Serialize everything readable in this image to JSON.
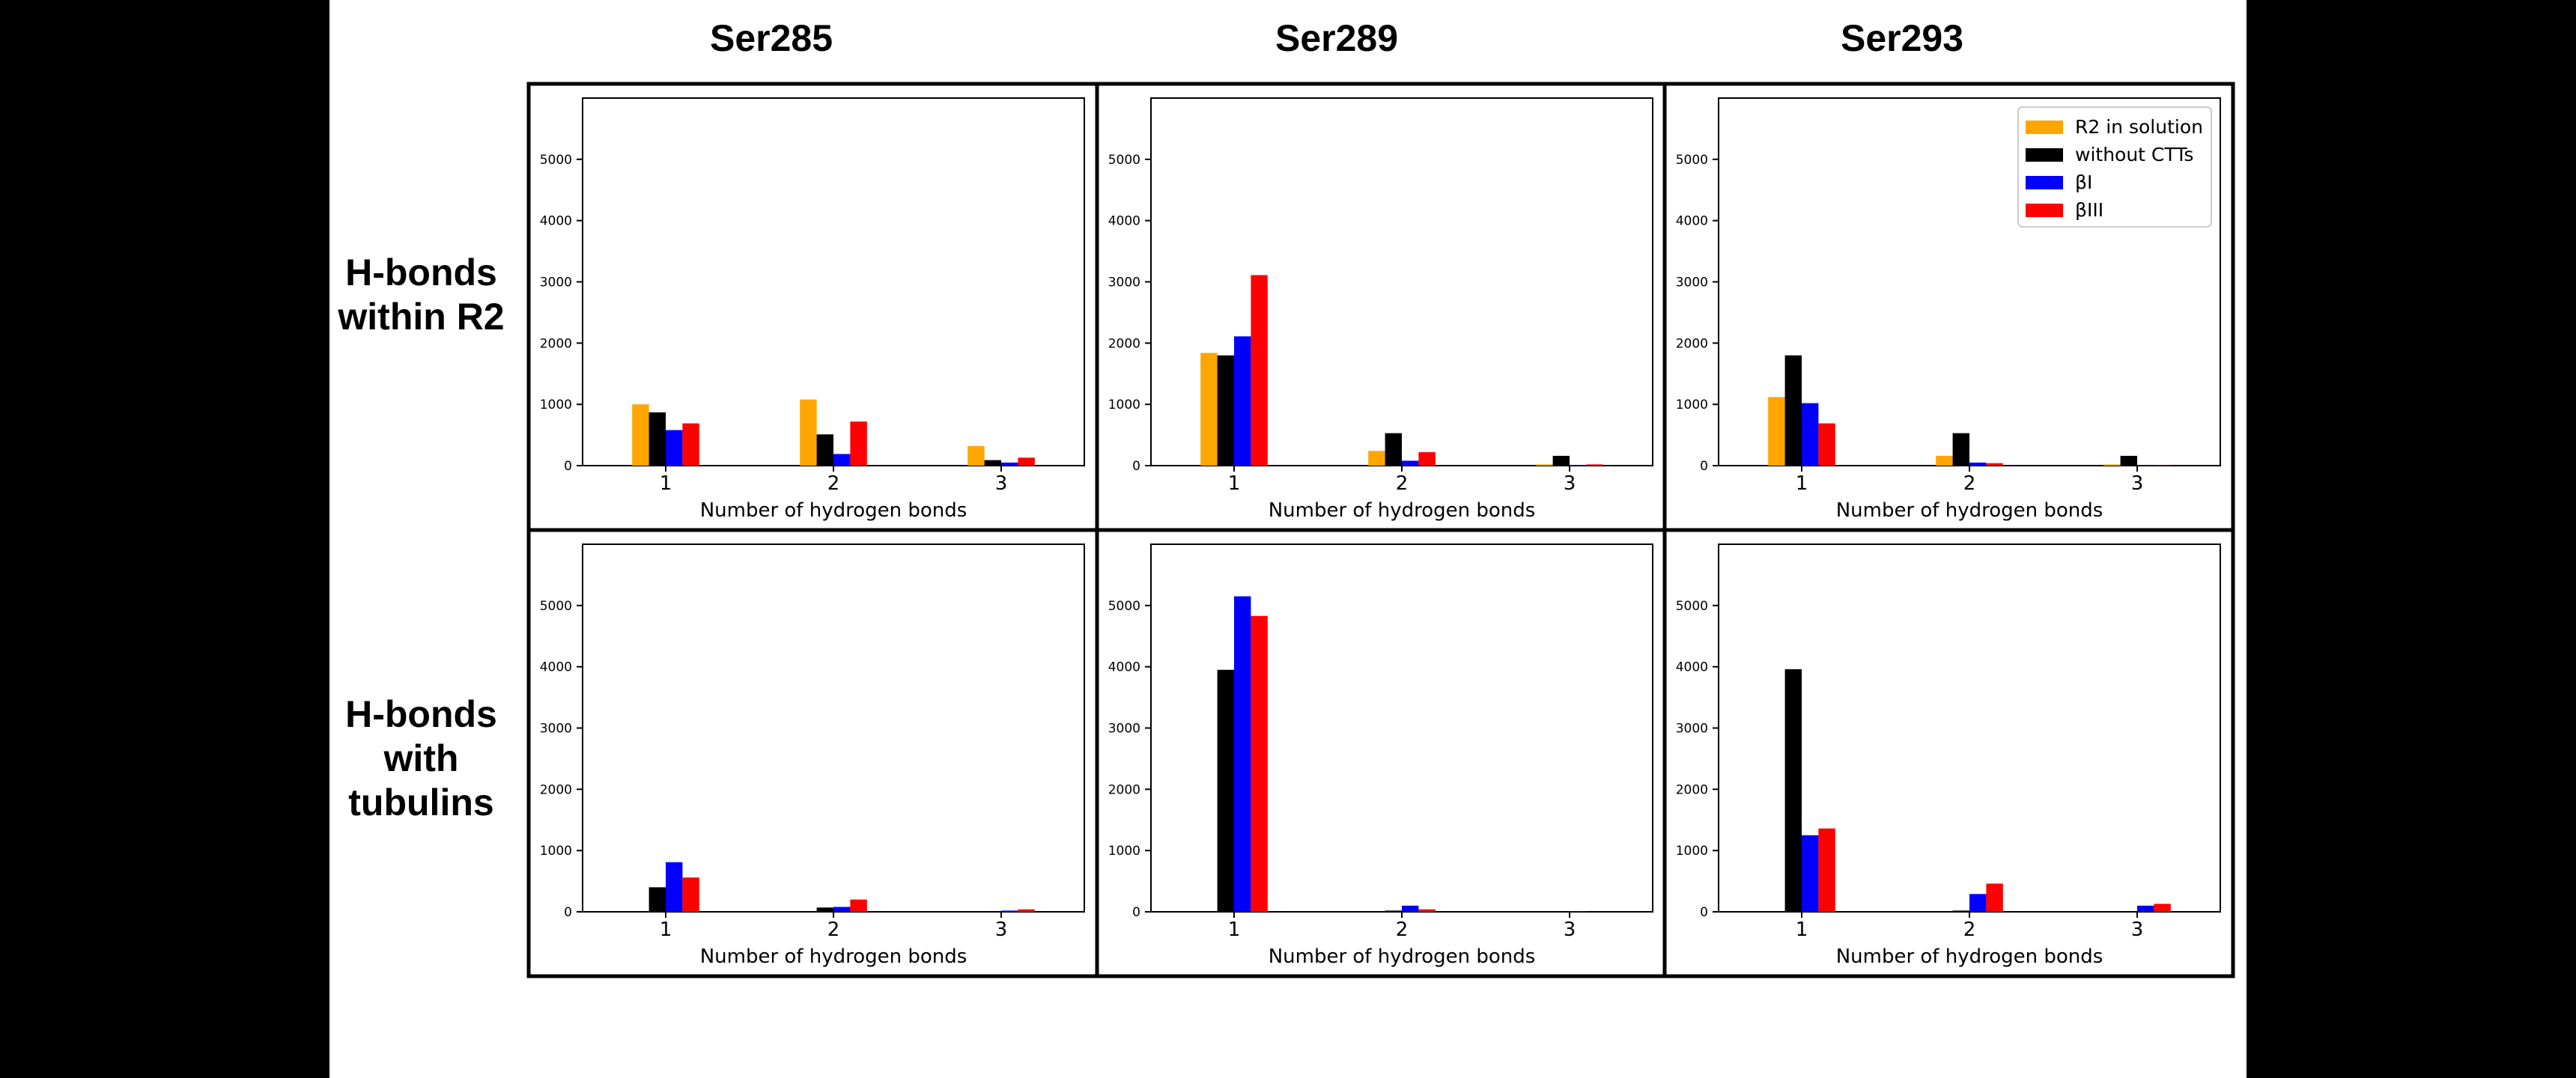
{
  "figure": {
    "columns": [
      "Ser285",
      "Ser289",
      "Ser293"
    ],
    "rows": [
      {
        "lines": [
          "H-bonds",
          "within R2"
        ]
      },
      {
        "lines": [
          "H-bonds",
          "with",
          "tubulins"
        ]
      }
    ]
  },
  "colors": {
    "R2 in solution": "#ffa500",
    "without CTTs": "#000000",
    "βI": "#0000ff",
    "βIII": "#ff0000"
  },
  "chart_data": [
    {
      "type": "bar",
      "row": 0,
      "col": 0,
      "categories": [
        "1",
        "2",
        "3"
      ],
      "xlabel": "Number of hydrogen bonds",
      "ylabel": "",
      "title": "",
      "ylim": [
        0,
        6000
      ],
      "yticks": [
        0,
        1000,
        2000,
        3000,
        4000,
        5000
      ],
      "legend": false,
      "series": [
        {
          "name": "R2 in solution",
          "values": [
            1000,
            1080,
            320
          ]
        },
        {
          "name": "without CTTs",
          "values": [
            870,
            510,
            90
          ]
        },
        {
          "name": "βI",
          "values": [
            580,
            190,
            50
          ]
        },
        {
          "name": "βIII",
          "values": [
            690,
            720,
            130
          ]
        }
      ]
    },
    {
      "type": "bar",
      "row": 0,
      "col": 1,
      "categories": [
        "1",
        "2",
        "3"
      ],
      "xlabel": "Number of hydrogen bonds",
      "ylabel": "",
      "title": "",
      "ylim": [
        0,
        6000
      ],
      "yticks": [
        0,
        1000,
        2000,
        3000,
        4000,
        5000
      ],
      "legend": false,
      "series": [
        {
          "name": "R2 in solution",
          "values": [
            1840,
            240,
            20
          ]
        },
        {
          "name": "without CTTs",
          "values": [
            1800,
            530,
            160
          ]
        },
        {
          "name": "βI",
          "values": [
            2110,
            80,
            10
          ]
        },
        {
          "name": "βIII",
          "values": [
            3110,
            220,
            20
          ]
        }
      ]
    },
    {
      "type": "bar",
      "row": 0,
      "col": 2,
      "categories": [
        "1",
        "2",
        "3"
      ],
      "xlabel": "Number of hydrogen bonds",
      "ylabel": "",
      "title": "",
      "ylim": [
        0,
        6000
      ],
      "yticks": [
        0,
        1000,
        2000,
        3000,
        4000,
        5000
      ],
      "legend": true,
      "legend_position": "top-right",
      "series": [
        {
          "name": "R2 in solution",
          "values": [
            1120,
            160,
            20
          ]
        },
        {
          "name": "without CTTs",
          "values": [
            1800,
            530,
            160
          ]
        },
        {
          "name": "βI",
          "values": [
            1020,
            50,
            5
          ]
        },
        {
          "name": "βIII",
          "values": [
            690,
            40,
            5
          ]
        }
      ]
    },
    {
      "type": "bar",
      "row": 1,
      "col": 0,
      "categories": [
        "1",
        "2",
        "3"
      ],
      "xlabel": "Number of hydrogen bonds",
      "ylabel": "",
      "title": "",
      "ylim": [
        0,
        6000
      ],
      "yticks": [
        0,
        1000,
        2000,
        3000,
        4000,
        5000
      ],
      "legend": false,
      "series": [
        {
          "name": "R2 in solution",
          "values": [
            0,
            0,
            0
          ]
        },
        {
          "name": "without CTTs",
          "values": [
            400,
            70,
            10
          ]
        },
        {
          "name": "βI",
          "values": [
            810,
            80,
            20
          ]
        },
        {
          "name": "βIII",
          "values": [
            560,
            200,
            40
          ]
        }
      ]
    },
    {
      "type": "bar",
      "row": 1,
      "col": 1,
      "categories": [
        "1",
        "2",
        "3"
      ],
      "xlabel": "Number of hydrogen bonds",
      "ylabel": "",
      "title": "",
      "ylim": [
        0,
        6000
      ],
      "yticks": [
        0,
        1000,
        2000,
        3000,
        4000,
        5000
      ],
      "legend": false,
      "series": [
        {
          "name": "R2 in solution",
          "values": [
            0,
            0,
            0
          ]
        },
        {
          "name": "without CTTs",
          "values": [
            3950,
            20,
            0
          ]
        },
        {
          "name": "βI",
          "values": [
            5150,
            100,
            10
          ]
        },
        {
          "name": "βIII",
          "values": [
            4830,
            40,
            0
          ]
        }
      ]
    },
    {
      "type": "bar",
      "row": 1,
      "col": 2,
      "categories": [
        "1",
        "2",
        "3"
      ],
      "xlabel": "Number of hydrogen bonds",
      "ylabel": "",
      "title": "",
      "ylim": [
        0,
        6000
      ],
      "yticks": [
        0,
        1000,
        2000,
        3000,
        4000,
        5000
      ],
      "legend": false,
      "series": [
        {
          "name": "R2 in solution",
          "values": [
            0,
            0,
            0
          ]
        },
        {
          "name": "without CTTs",
          "values": [
            3960,
            20,
            0
          ]
        },
        {
          "name": "βI",
          "values": [
            1250,
            290,
            100
          ]
        },
        {
          "name": "βIII",
          "values": [
            1360,
            460,
            130
          ]
        }
      ]
    }
  ]
}
